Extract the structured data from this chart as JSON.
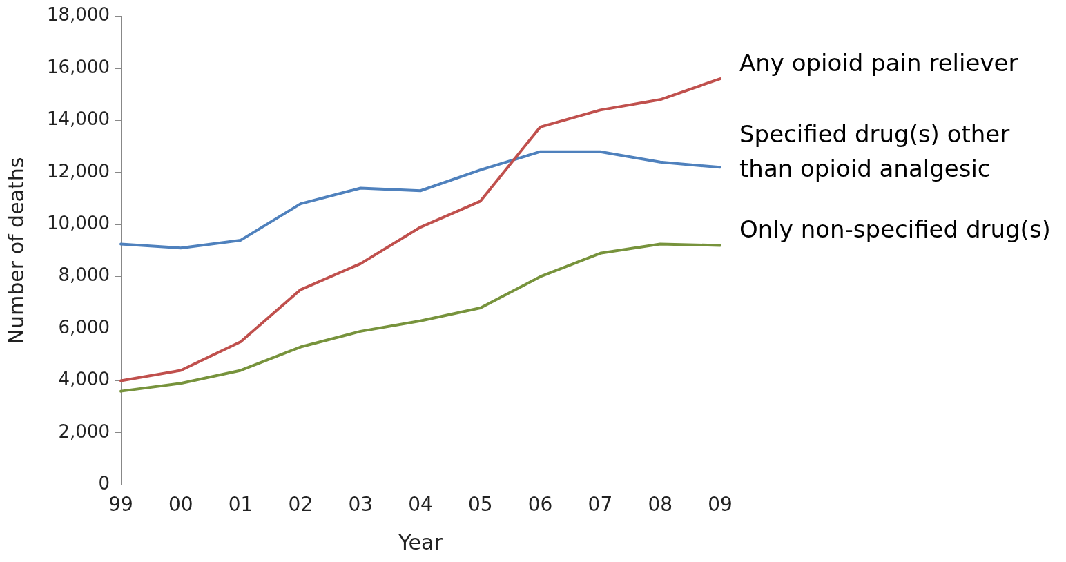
{
  "chart_data": {
    "type": "line",
    "xlabel": "Year",
    "ylabel": "Number of deaths",
    "categories": [
      "99",
      "00",
      "01",
      "02",
      "03",
      "04",
      "05",
      "06",
      "07",
      "08",
      "09"
    ],
    "series": [
      {
        "name": "Any opioid pain reliever",
        "color": "#c0504d",
        "values": [
          4000,
          4400,
          5500,
          7500,
          8500,
          9900,
          10900,
          13750,
          14400,
          14800,
          15600
        ]
      },
      {
        "name": "Specified drug(s) other than opioid analgesic",
        "color": "#4f81bd",
        "values": [
          9250,
          9100,
          9400,
          10800,
          11400,
          11300,
          12100,
          12800,
          12800,
          12400,
          12200
        ]
      },
      {
        "name": "Only non-specified drug(s)",
        "color": "#77933c",
        "values": [
          3600,
          3900,
          4400,
          5300,
          5900,
          6300,
          6800,
          8000,
          8900,
          9250,
          9200
        ]
      }
    ],
    "ylim": [
      0,
      18000
    ],
    "yticks": [
      0,
      {
        "value": 2000,
        "label": "2,000"
      },
      {
        "value": 4000,
        "label": "4,000"
      },
      {
        "value": 6000,
        "label": "6,000"
      },
      {
        "value": 8000,
        "label": "8,000"
      },
      {
        "value": 10000,
        "label": "10,000"
      },
      {
        "value": 12000,
        "label": "12,000"
      },
      {
        "value": 14000,
        "label": "14,000"
      },
      {
        "value": 16000,
        "label": "16,000"
      },
      {
        "value": 18000,
        "label": "18,000"
      }
    ],
    "grid": false,
    "marker": "none",
    "line_style": "solid"
  }
}
